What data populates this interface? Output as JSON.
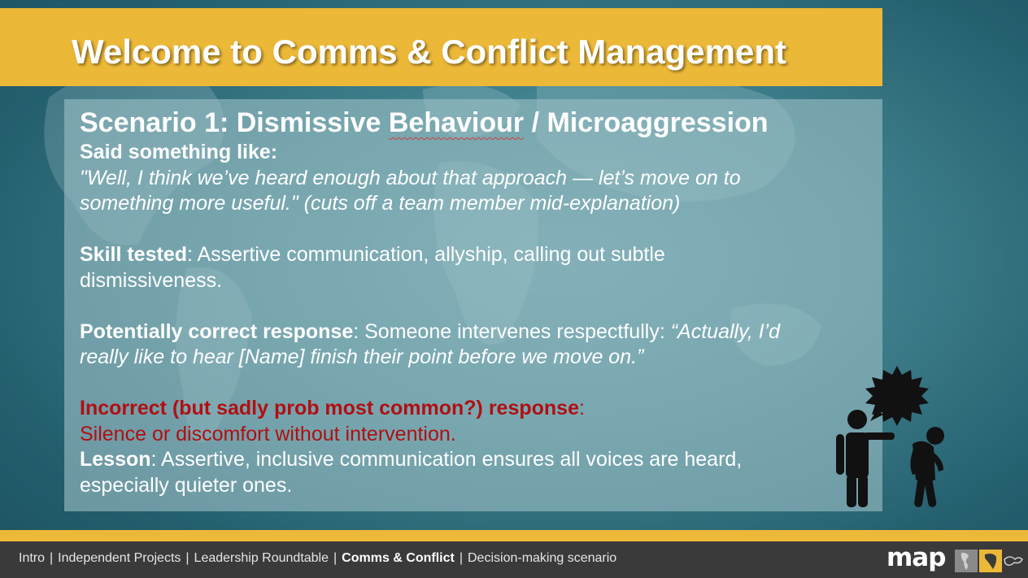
{
  "title": "Welcome to Comms & Conflict Management",
  "scenario": {
    "heading_start": "Scenario 1: Dismissive ",
    "heading_underlined": "Behaviour",
    "heading_end": " / Microaggression",
    "said_label": "Said something like:",
    "quote_line1": "\"Well, I think we’ve heard enough about that approach — let’s move on to",
    "quote_line2": "something more useful.\"",
    "quote_note": " (cuts off a team member mid-explanation)",
    "skill_label": "Skill tested",
    "skill_text1": ": Assertive communication, allyship, calling out subtle",
    "skill_text2": "dismissiveness.",
    "correct_label": "Potentially correct response",
    "correct_text": ": Someone intervenes respectfully: ",
    "correct_quote1": "“Actually, I’d",
    "correct_quote2": "really like to hear [Name] finish their point before we move on.”",
    "incorrect_label": "Incorrect (but sadly prob most common?) response",
    "incorrect_colon": ":",
    "incorrect_text": "Silence or discomfort without intervention.",
    "lesson_label": "Lesson",
    "lesson_text1": ": Assertive, inclusive communication ensures all voices are heard,",
    "lesson_text2": "especially quieter ones."
  },
  "footer": {
    "nav": [
      {
        "label": "Intro"
      },
      {
        "label": "Independent Projects"
      },
      {
        "label": "Leadership Roundtable"
      },
      {
        "label": "Comms & Conflict",
        "active": true
      },
      {
        "label": "Decision-making scenario"
      }
    ],
    "separator": "|",
    "logo_text": "map"
  },
  "colors": {
    "accent_yellow": "#ecb837",
    "incorrect_red": "#b10f12",
    "footer_bg": "#3a3a3a"
  },
  "icons": [
    "world-map-background",
    "dismissive-person-illustration",
    "speech-burst-icon",
    "map-logo-tiles"
  ]
}
